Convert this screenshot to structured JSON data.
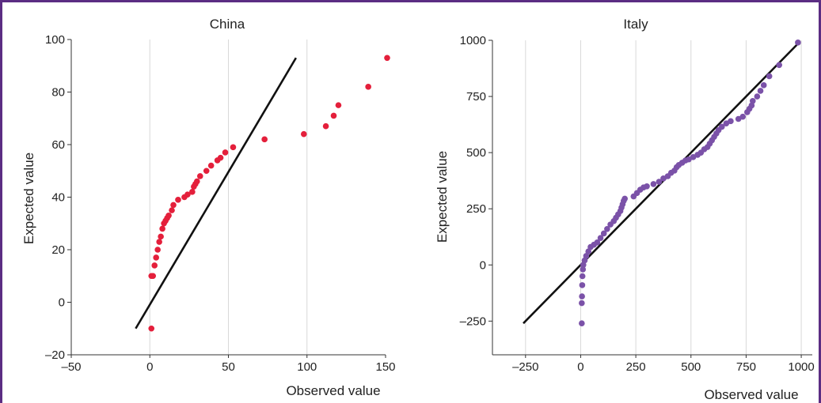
{
  "colors": {
    "frame": "#5b2d83",
    "china_points": "#e41f3b",
    "italy_points": "#7b52a8",
    "reference_line": "#111111",
    "grid": "#d8d8d8",
    "axis": "#333333"
  },
  "chart_data": [
    {
      "type": "scatter",
      "title": "China",
      "xlabel": "Observed value",
      "ylabel": "Expected value",
      "xlim": [
        -50,
        150
      ],
      "ylim": [
        -20,
        100
      ],
      "xticks": [
        -50,
        0,
        50,
        100,
        150
      ],
      "yticks": [
        -20,
        0,
        20,
        40,
        60,
        80,
        100
      ],
      "xtick_labels": [
        "–50",
        "0",
        "50",
        "100",
        "150"
      ],
      "ytick_labels": [
        "–20",
        "0",
        "20",
        "40",
        "60",
        "80",
        "100"
      ],
      "grid": true,
      "reference_line": [
        [
          -9,
          -10
        ],
        [
          93,
          93
        ]
      ],
      "points": [
        [
          1,
          -10
        ],
        [
          1,
          10
        ],
        [
          2,
          10
        ],
        [
          3,
          14
        ],
        [
          4,
          17
        ],
        [
          5,
          20
        ],
        [
          6,
          23
        ],
        [
          7,
          25
        ],
        [
          8,
          28
        ],
        [
          9,
          30
        ],
        [
          10,
          31
        ],
        [
          11,
          32
        ],
        [
          12,
          33
        ],
        [
          14,
          35
        ],
        [
          15,
          37
        ],
        [
          18,
          39
        ],
        [
          22,
          40
        ],
        [
          24,
          41
        ],
        [
          27,
          42
        ],
        [
          28,
          44
        ],
        [
          29,
          45
        ],
        [
          30,
          46
        ],
        [
          32,
          48
        ],
        [
          36,
          50
        ],
        [
          39,
          52
        ],
        [
          43,
          54
        ],
        [
          45,
          55
        ],
        [
          48,
          57
        ],
        [
          53,
          59
        ],
        [
          73,
          62
        ],
        [
          98,
          64
        ],
        [
          112,
          67
        ],
        [
          117,
          71
        ],
        [
          120,
          75
        ],
        [
          139,
          82
        ],
        [
          153,
          93
        ]
      ]
    },
    {
      "type": "scatter",
      "title": "Italy",
      "xlabel": "Observed value",
      "ylabel": "Expected value",
      "xlim": [
        -400,
        1050
      ],
      "ylim": [
        -400,
        1000
      ],
      "xticks": [
        -250,
        0,
        250,
        500,
        750,
        1000
      ],
      "yticks": [
        -250,
        0,
        250,
        500,
        750,
        1000
      ],
      "xtick_labels": [
        "–250",
        "0",
        "250",
        "500",
        "750",
        "1000"
      ],
      "ytick_labels": [
        "–250",
        "0",
        "250",
        "500",
        "750",
        "1000"
      ],
      "grid": true,
      "reference_line": [
        [
          -260,
          -260
        ],
        [
          985,
          985
        ]
      ],
      "points": [
        [
          5,
          -260
        ],
        [
          5,
          -170
        ],
        [
          6,
          -140
        ],
        [
          7,
          -90
        ],
        [
          8,
          -50
        ],
        [
          10,
          -20
        ],
        [
          12,
          0
        ],
        [
          18,
          20
        ],
        [
          25,
          40
        ],
        [
          35,
          60
        ],
        [
          45,
          80
        ],
        [
          60,
          90
        ],
        [
          75,
          100
        ],
        [
          90,
          120
        ],
        [
          105,
          140
        ],
        [
          120,
          160
        ],
        [
          135,
          180
        ],
        [
          150,
          195
        ],
        [
          160,
          210
        ],
        [
          170,
          225
        ],
        [
          180,
          240
        ],
        [
          185,
          255
        ],
        [
          190,
          270
        ],
        [
          195,
          285
        ],
        [
          200,
          295
        ],
        [
          240,
          305
        ],
        [
          255,
          320
        ],
        [
          270,
          335
        ],
        [
          285,
          345
        ],
        [
          300,
          350
        ],
        [
          330,
          360
        ],
        [
          355,
          370
        ],
        [
          375,
          385
        ],
        [
          395,
          395
        ],
        [
          410,
          410
        ],
        [
          425,
          420
        ],
        [
          435,
          435
        ],
        [
          445,
          445
        ],
        [
          460,
          455
        ],
        [
          475,
          465
        ],
        [
          490,
          470
        ],
        [
          510,
          480
        ],
        [
          530,
          490
        ],
        [
          545,
          500
        ],
        [
          560,
          515
        ],
        [
          575,
          525
        ],
        [
          585,
          540
        ],
        [
          595,
          555
        ],
        [
          605,
          570
        ],
        [
          615,
          585
        ],
        [
          625,
          600
        ],
        [
          640,
          615
        ],
        [
          660,
          630
        ],
        [
          680,
          640
        ],
        [
          715,
          650
        ],
        [
          735,
          660
        ],
        [
          755,
          680
        ],
        [
          765,
          695
        ],
        [
          775,
          710
        ],
        [
          780,
          730
        ],
        [
          800,
          750
        ],
        [
          815,
          775
        ],
        [
          830,
          800
        ],
        [
          855,
          840
        ],
        [
          900,
          890
        ],
        [
          985,
          990
        ]
      ]
    }
  ]
}
